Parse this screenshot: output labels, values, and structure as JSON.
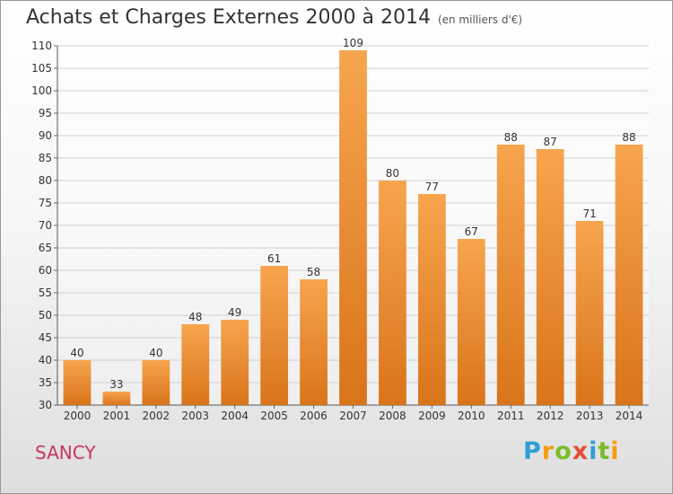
{
  "header": {
    "title": "Achats et Charges Externes 2000 à 2014",
    "unit": "(en milliers d'€)"
  },
  "footer": {
    "commune": "SANCY",
    "logo_text": "Proxiti",
    "logo_letters": [
      {
        "char": "P",
        "color": "#2e9fd6"
      },
      {
        "char": "r",
        "color": "#f39c12"
      },
      {
        "char": "o",
        "color": "#7cbb2a"
      },
      {
        "char": "x",
        "color": "#e74c3c"
      },
      {
        "char": "i",
        "color": "#2e9fd6"
      },
      {
        "char": "t",
        "color": "#7cbb2a"
      },
      {
        "char": "i",
        "color": "#f39c12"
      }
    ]
  },
  "colors": {
    "bar_light": "#f7a54e",
    "bar_dark": "#d9741a",
    "grid": "#d0d0d0",
    "axis_text": "#333333"
  },
  "chart_data": {
    "type": "bar",
    "categories": [
      "2000",
      "2001",
      "2002",
      "2003",
      "2004",
      "2005",
      "2006",
      "2007",
      "2008",
      "2009",
      "2010",
      "2011",
      "2012",
      "2013",
      "2014"
    ],
    "values": [
      40,
      33,
      40,
      48,
      49,
      61,
      58,
      109,
      80,
      77,
      67,
      88,
      87,
      71,
      88
    ],
    "ylim": [
      30,
      110
    ],
    "yticks": [
      30,
      35,
      40,
      45,
      50,
      55,
      60,
      65,
      70,
      75,
      80,
      85,
      90,
      95,
      100,
      105,
      110
    ],
    "grid": true,
    "xlabel": "",
    "ylabel": ""
  }
}
